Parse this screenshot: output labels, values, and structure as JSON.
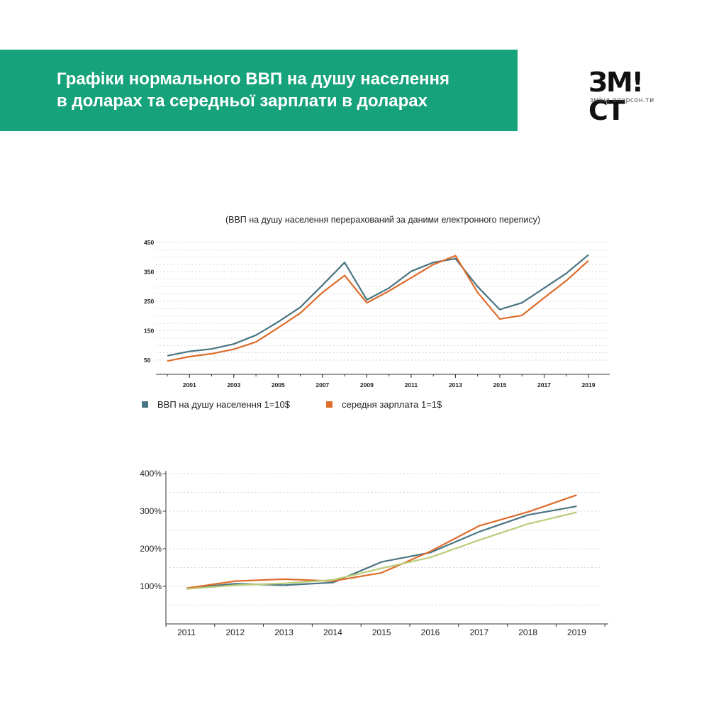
{
  "header": {
    "title_line1": "Графіки нормального ВВП на душу населення",
    "title_line2": "в доларах та середньої зарплати в доларах"
  },
  "logo": {
    "name": "ЗМ!СТ",
    "tagline": "зміна опорсон.ти"
  },
  "colors": {
    "banner": "#16a27a",
    "gdp": "#4a7582",
    "salary": "#de6c2b",
    "third": "#b9cd78"
  },
  "chart_data": [
    {
      "type": "line",
      "title": "(ВВП на душу населення перерахований за даними електронного перепису)",
      "x": [
        2000,
        2001,
        2002,
        2003,
        2004,
        2005,
        2006,
        2007,
        2008,
        2009,
        2010,
        2011,
        2012,
        2013,
        2014,
        2015,
        2016,
        2017,
        2018,
        2019
      ],
      "x_ticks": [
        "2001",
        "2003",
        "2005",
        "2007",
        "2009",
        "2011",
        "2013",
        "2015",
        "2017",
        "2019"
      ],
      "y_ticks": [
        "50",
        "150",
        "250",
        "350",
        "450"
      ],
      "ylim": [
        50,
        450
      ],
      "grid": true,
      "legend_position": "bottom",
      "series": [
        {
          "name": "ВВП на душу населення 1=10$",
          "color": "#4a7582",
          "values": [
            65,
            80,
            88,
            105,
            135,
            180,
            230,
            305,
            382,
            255,
            295,
            352,
            382,
            395,
            300,
            222,
            245,
            295,
            345,
            408
          ]
        },
        {
          "name": "середня зарплата 1=1$",
          "color": "#de6c2b",
          "values": [
            47,
            62,
            72,
            87,
            112,
            160,
            210,
            280,
            338,
            245,
            285,
            330,
            375,
            405,
            280,
            190,
            202,
            262,
            320,
            388
          ]
        }
      ]
    },
    {
      "type": "line",
      "title": "",
      "x": [
        "2011",
        "2012",
        "2013",
        "2014",
        "2015",
        "2016",
        "2017",
        "2018",
        "2019"
      ],
      "y_ticks": [
        "100%",
        "200%",
        "300%",
        "400%"
      ],
      "ylim": [
        0,
        400
      ],
      "grid": true,
      "series": [
        {
          "color": "#4a7582",
          "values": [
            95,
            107,
            103,
            110,
            165,
            190,
            245,
            290,
            313
          ]
        },
        {
          "color": "#de6c2b",
          "values": [
            95,
            114,
            119,
            114,
            136,
            193,
            261,
            298,
            343
          ]
        },
        {
          "color": "#b9cd78",
          "values": [
            93,
            103,
            108,
            117,
            148,
            177,
            223,
            266,
            297
          ]
        }
      ]
    }
  ]
}
